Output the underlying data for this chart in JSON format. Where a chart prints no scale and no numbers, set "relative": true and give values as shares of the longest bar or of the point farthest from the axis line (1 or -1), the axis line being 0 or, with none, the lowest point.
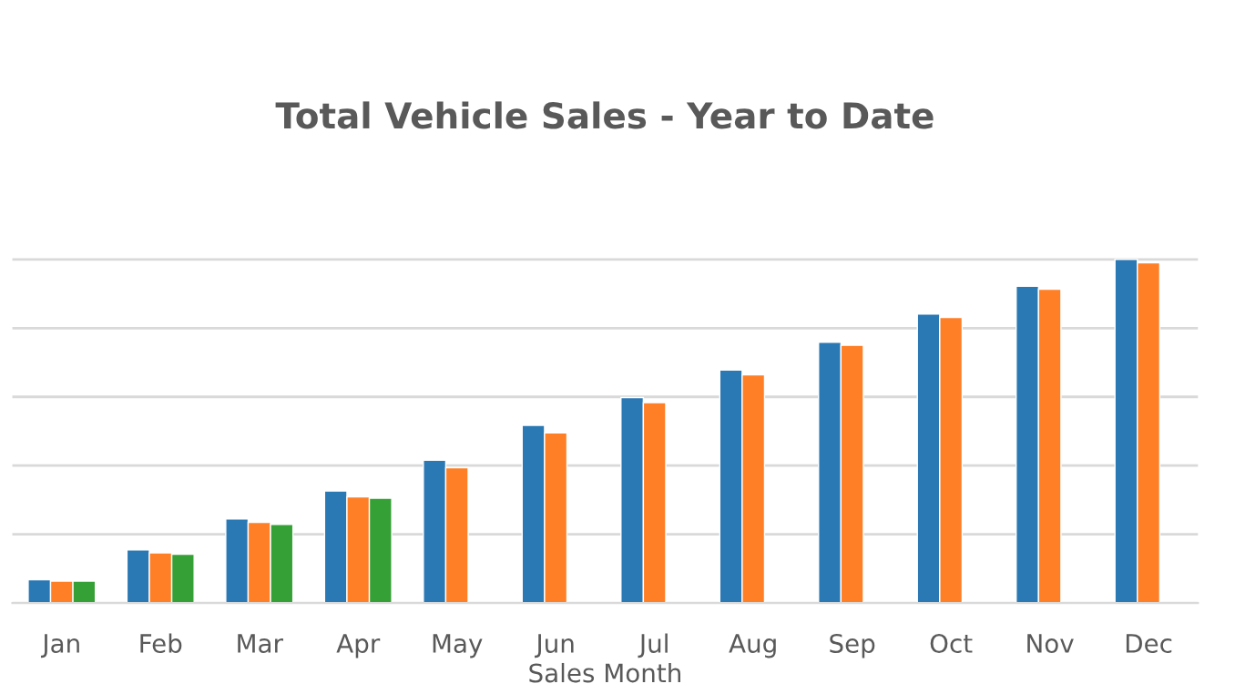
{
  "chart_data": {
    "type": "bar",
    "title": "Total Vehicle Sales - Year to Date",
    "xlabel": "Sales Month",
    "relative": true,
    "grid": "y",
    "categories": [
      "Jan",
      "Feb",
      "Mar",
      "Apr",
      "May",
      "Jun",
      "Jul",
      "Aug",
      "Sep",
      "Oct",
      "Nov",
      "Dec"
    ],
    "series": [
      {
        "color": "#2a78b4",
        "values": [
          0.068,
          0.155,
          0.245,
          0.326,
          0.416,
          0.517,
          0.598,
          0.678,
          0.759,
          0.841,
          0.922,
          1
        ]
      },
      {
        "color": "#ff7f27",
        "values": [
          0.064,
          0.146,
          0.235,
          0.309,
          0.394,
          0.495,
          0.583,
          0.664,
          0.75,
          0.831,
          0.913,
          0.99
        ]
      },
      {
        "color": "#35a035",
        "values": [
          0.064,
          0.142,
          0.229,
          0.305,
          null,
          null,
          null,
          null,
          null,
          null,
          null,
          null
        ]
      }
    ]
  }
}
